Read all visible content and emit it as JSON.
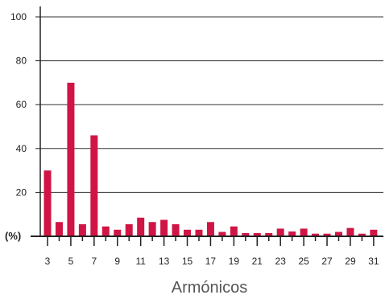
{
  "chart_data": {
    "type": "bar",
    "title": "",
    "xlabel": "Armónicos",
    "ylabel": "(%)",
    "ylim": [
      0,
      100
    ],
    "y_ticks": [
      20,
      40,
      60,
      80,
      100
    ],
    "grid": true,
    "bar_color": "#d01545",
    "categories": [
      3,
      4,
      5,
      6,
      7,
      8,
      9,
      10,
      11,
      12,
      13,
      14,
      15,
      16,
      17,
      18,
      19,
      20,
      21,
      22,
      23,
      24,
      25,
      26,
      27,
      28,
      29,
      30,
      31
    ],
    "x_tick_labels": [
      "3",
      "5",
      "7",
      "9",
      "11",
      "13",
      "15",
      "17",
      "19",
      "21",
      "23",
      "25",
      "27",
      "29",
      "31"
    ],
    "values": [
      30,
      6.5,
      70,
      5.5,
      46,
      4.5,
      3,
      5.5,
      8.5,
      6.5,
      7.5,
      5.5,
      3,
      3,
      6.5,
      2,
      4.5,
      1.5,
      1.5,
      1.5,
      3.5,
      2.2,
      3.5,
      1.2,
      1.2,
      2,
      3.8,
      1.2,
      3
    ]
  }
}
